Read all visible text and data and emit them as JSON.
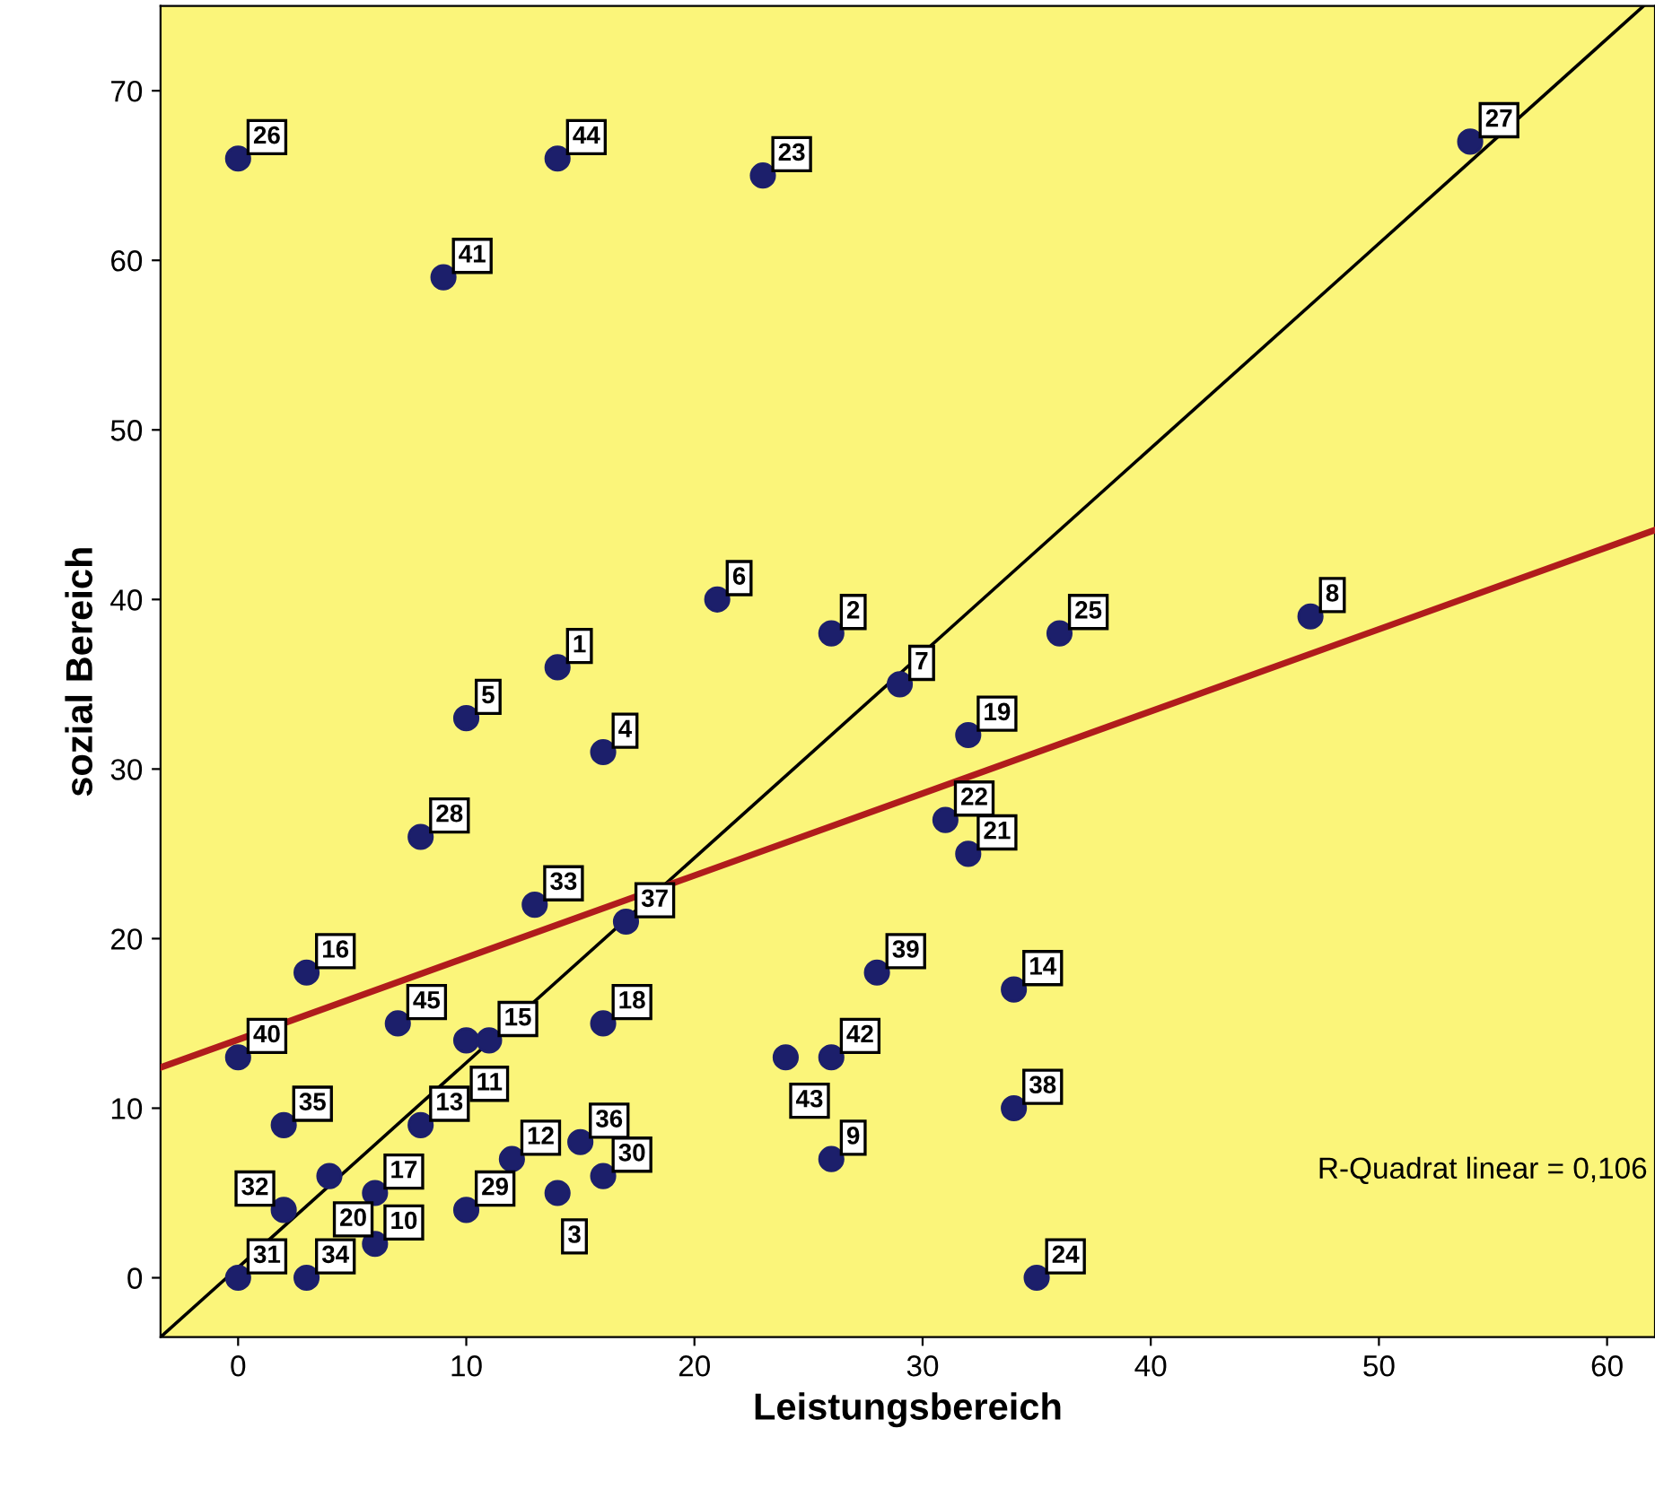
{
  "chart_data": {
    "type": "scatter",
    "xlabel": "Leistungsbereich",
    "ylabel": "sozial Bereich",
    "xlim": [
      -3.4,
      62.1
    ],
    "ylim": [
      -3.5,
      75
    ],
    "xticks": [
      0,
      10,
      20,
      30,
      40,
      50,
      60
    ],
    "yticks": [
      0,
      10,
      20,
      30,
      40,
      50,
      60,
      70
    ],
    "grid": false,
    "series": [
      {
        "type": "scatter",
        "marker": "circle",
        "color": "#1c1f6b",
        "x": [
          0,
          14,
          23,
          54,
          9,
          21,
          26,
          36,
          47,
          14,
          29,
          10,
          32,
          16,
          31,
          32,
          8,
          13,
          17,
          3,
          28,
          34,
          7,
          16,
          0,
          10,
          11,
          24,
          26,
          34,
          2,
          8,
          15,
          12,
          26,
          4,
          16,
          6,
          14,
          2,
          10,
          6,
          3,
          0,
          35
        ],
        "values": [
          66,
          66,
          65,
          67,
          59,
          40,
          38,
          38,
          39,
          36,
          35,
          33,
          32,
          31,
          27,
          25,
          26,
          22,
          21,
          18,
          18,
          17,
          15,
          15,
          13,
          14,
          14,
          13,
          13,
          10,
          9,
          9,
          8,
          7,
          7,
          6,
          6,
          5,
          5,
          4,
          4,
          2,
          0,
          0,
          0
        ]
      },
      {
        "type": "line",
        "color": "#000000",
        "x": [
          -3.4,
          61.6
        ],
        "values": [
          -3.5,
          75
        ]
      },
      {
        "type": "line",
        "color": "#b01c1c",
        "x": [
          -3.4,
          62.1
        ],
        "values": [
          12.4,
          44.1
        ]
      }
    ],
    "annotations": [
      {
        "text": "26",
        "x": 0,
        "y": 66
      },
      {
        "text": "44",
        "x": 14,
        "y": 66
      },
      {
        "text": "23",
        "x": 23,
        "y": 65
      },
      {
        "text": "27",
        "x": 54,
        "y": 67
      },
      {
        "text": "41",
        "x": 9,
        "y": 59
      },
      {
        "text": "6",
        "x": 21,
        "y": 40
      },
      {
        "text": "2",
        "x": 26,
        "y": 38
      },
      {
        "text": "25",
        "x": 36,
        "y": 38
      },
      {
        "text": "8",
        "x": 47,
        "y": 39
      },
      {
        "text": "1",
        "x": 14,
        "y": 36
      },
      {
        "text": "7",
        "x": 29,
        "y": 35
      },
      {
        "text": "5",
        "x": 10,
        "y": 33
      },
      {
        "text": "19",
        "x": 32,
        "y": 32
      },
      {
        "text": "4",
        "x": 16,
        "y": 31
      },
      {
        "text": "22",
        "x": 31,
        "y": 27
      },
      {
        "text": "21",
        "x": 32,
        "y": 25
      },
      {
        "text": "28",
        "x": 8,
        "y": 26
      },
      {
        "text": "33",
        "x": 13,
        "y": 22
      },
      {
        "text": "37",
        "x": 17,
        "y": 21
      },
      {
        "text": "16",
        "x": 3,
        "y": 18
      },
      {
        "text": "39",
        "x": 28,
        "y": 18
      },
      {
        "text": "14",
        "x": 34,
        "y": 17
      },
      {
        "text": "45",
        "x": 7,
        "y": 15
      },
      {
        "text": "18",
        "x": 16,
        "y": 15
      },
      {
        "text": "40",
        "x": 0,
        "y": 13
      },
      {
        "text": "11",
        "x": 10,
        "y": 14
      },
      {
        "text": "15",
        "x": 11,
        "y": 14
      },
      {
        "text": "43",
        "x": 24,
        "y": 13
      },
      {
        "text": "42",
        "x": 26,
        "y": 13
      },
      {
        "text": "38",
        "x": 34,
        "y": 10
      },
      {
        "text": "35",
        "x": 2,
        "y": 9
      },
      {
        "text": "13",
        "x": 8,
        "y": 9
      },
      {
        "text": "36",
        "x": 15,
        "y": 8
      },
      {
        "text": "12",
        "x": 12,
        "y": 7
      },
      {
        "text": "9",
        "x": 26,
        "y": 7
      },
      {
        "text": "20",
        "x": 4,
        "y": 6
      },
      {
        "text": "30",
        "x": 16,
        "y": 6
      },
      {
        "text": "17",
        "x": 6,
        "y": 5
      },
      {
        "text": "3",
        "x": 14,
        "y": 5
      },
      {
        "text": "32",
        "x": 2,
        "y": 4
      },
      {
        "text": "29",
        "x": 10,
        "y": 4
      },
      {
        "text": "10",
        "x": 6,
        "y": 2
      },
      {
        "text": "34",
        "x": 3,
        "y": 0
      },
      {
        "text": "31",
        "x": 0,
        "y": 0
      },
      {
        "text": "24",
        "x": 35,
        "y": 0
      },
      "R-Quadrat linear = 0,106"
    ]
  }
}
